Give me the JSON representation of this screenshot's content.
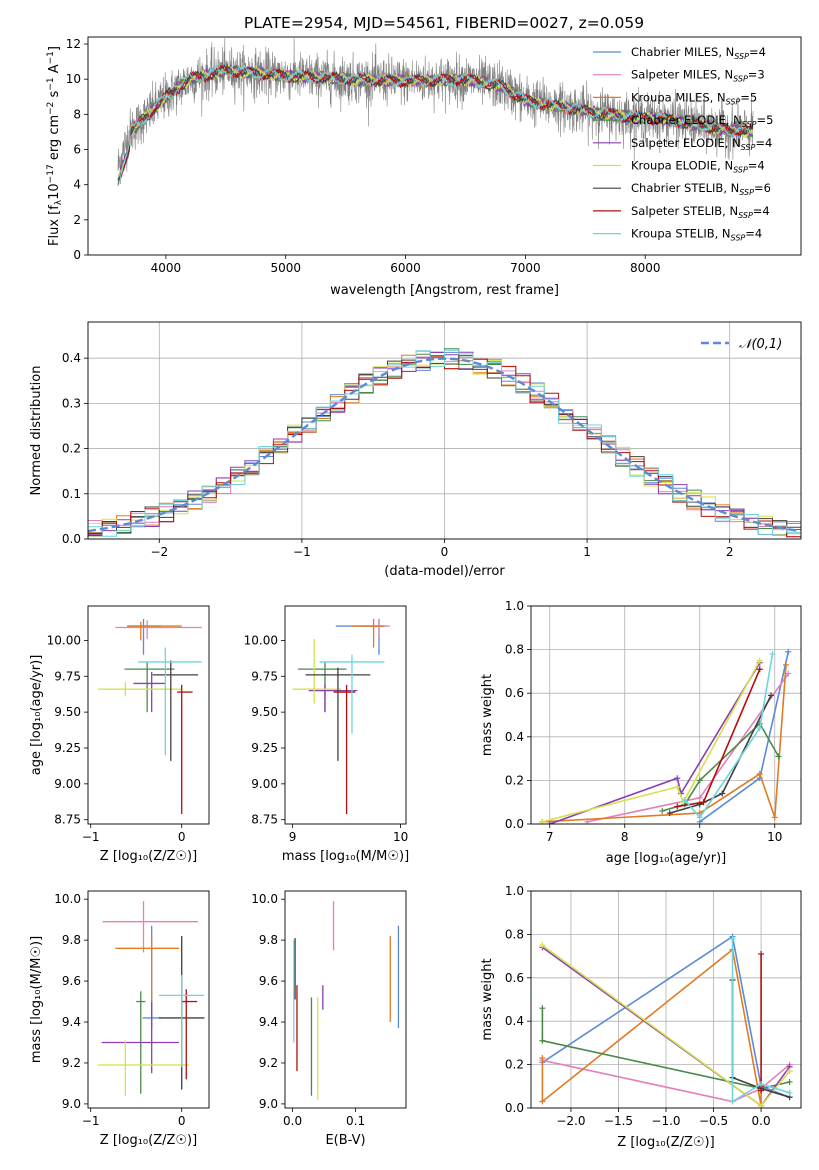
{
  "figure": {
    "title": "PLATE=2954, MJD=54561, FIBERID=0027, z=0.059"
  },
  "chart_data": [
    {
      "id": "spectrum",
      "type": "line",
      "xlabel": "wavelength [Angstrom, rest frame]",
      "ylabel_parts": [
        "Flux [f",
        "λ",
        "10",
        "−17",
        " erg cm",
        "−2",
        " s",
        "−1",
        " A",
        "−1",
        "]"
      ],
      "xlim": [
        3350,
        9300
      ],
      "ylim": [
        0,
        12.4
      ],
      "xticks": [
        4000,
        5000,
        6000,
        7000,
        8000
      ],
      "yticks": [
        0,
        2,
        4,
        6,
        8,
        10,
        12
      ],
      "grid": false,
      "legend_position": "top-right",
      "continuum_points": [
        [
          3600,
          5.0
        ],
        [
          3700,
          7.0
        ],
        [
          3850,
          8.0
        ],
        [
          4000,
          9.0
        ],
        [
          4200,
          10.0
        ],
        [
          4500,
          10.5
        ],
        [
          5000,
          10.2
        ],
        [
          5500,
          10.0
        ],
        [
          6000,
          9.9
        ],
        [
          6500,
          10.0
        ],
        [
          6800,
          9.6
        ],
        [
          7000,
          8.8
        ],
        [
          7500,
          8.2
        ],
        [
          7800,
          7.9
        ],
        [
          8200,
          7.7
        ],
        [
          8600,
          7.2
        ],
        [
          8900,
          7.0
        ]
      ],
      "noise_amplitude": 1.2
    },
    {
      "id": "residuals",
      "type": "step",
      "xlabel": "(data-model)/error",
      "ylabel": "Normed distribution",
      "xlim": [
        -2.5,
        2.5
      ],
      "ylim": [
        0,
        0.48
      ],
      "xticks": [
        -2,
        -1,
        0,
        1,
        2
      ],
      "xtick_labels": [
        "−2",
        "−1",
        "0",
        "1",
        "2"
      ],
      "yticks": [
        0,
        0.1,
        0.2,
        0.3,
        0.4
      ],
      "ytick_labels": [
        "0.0",
        "0.1",
        "0.2",
        "0.3",
        "0.4"
      ],
      "grid": true,
      "legend_position": "top-right",
      "gaussian_label": "𝒩(0,1)",
      "bin_width": 0.1
    },
    {
      "id": "age_vs_Z",
      "type": "errorbar",
      "xlabel": "Z [log₁₀(Z/Z☉)]",
      "ylabel": "age  [log₁₀(age/yr)]",
      "xlim": [
        -1.03,
        0.3
      ],
      "ylim": [
        8.72,
        10.24
      ],
      "xticks": [
        -1,
        0
      ],
      "xtick_labels": [
        "−1",
        "0"
      ],
      "yticks": [
        8.75,
        9.0,
        9.25,
        9.5,
        9.75,
        10.0
      ],
      "ytick_labels": [
        "8.75",
        "9.00",
        "9.25",
        "9.50",
        "9.75",
        "10.00"
      ],
      "points": [
        {
          "series": 0,
          "x": -0.42,
          "y": 10.1,
          "xerr": [
            0.18,
            0.2
          ],
          "yerr": [
            0.2,
            0.05
          ]
        },
        {
          "series": 1,
          "x": -0.38,
          "y": 10.09,
          "xerr": [
            0.35,
            0.6
          ],
          "yerr": [
            0.08,
            0.05
          ]
        },
        {
          "series": 2,
          "x": -0.45,
          "y": 10.1,
          "xerr": [
            0.15,
            0.45
          ],
          "yerr": [
            0.1,
            0.03
          ]
        },
        {
          "series": 3,
          "x": -0.38,
          "y": 9.8,
          "xerr": [
            0.25,
            0.3
          ],
          "yerr": [
            0.3,
            0.05
          ]
        },
        {
          "series": 4,
          "x": -0.33,
          "y": 9.7,
          "xerr": [
            0.2,
            0.15
          ],
          "yerr": [
            0.2,
            0.08
          ]
        },
        {
          "series": 5,
          "x": -0.62,
          "y": 9.66,
          "xerr": [
            0.3,
            0.62
          ],
          "yerr": [
            0.05,
            0.05
          ]
        },
        {
          "series": 6,
          "x": -0.12,
          "y": 9.76,
          "xerr": [
            0.2,
            0.3
          ],
          "yerr": [
            0.6,
            0.1
          ]
        },
        {
          "series": 7,
          "x": 0.0,
          "y": 9.64,
          "xerr": [
            0.05,
            0.12
          ],
          "yerr": [
            0.85,
            0.05
          ]
        },
        {
          "series": 8,
          "x": -0.18,
          "y": 9.85,
          "xerr": [
            0.3,
            0.4
          ],
          "yerr": [
            0.65,
            0.1
          ]
        }
      ]
    },
    {
      "id": "age_vs_mass",
      "type": "errorbar",
      "xlabel": "mass [log₁₀(M/M☉)]",
      "ylabel": "",
      "xlim": [
        8.93,
        10.05
      ],
      "ylim": [
        8.72,
        10.24
      ],
      "xticks": [
        9,
        10
      ],
      "xtick_labels": [
        "9",
        "10"
      ],
      "yticks": [
        8.75,
        9.0,
        9.25,
        9.5,
        9.75,
        10.0
      ],
      "ytick_labels": [
        "8.75",
        "9.00",
        "9.25",
        "9.50",
        "9.75",
        "10.00"
      ],
      "points": [
        {
          "series": 0,
          "x": 9.8,
          "y": 10.1,
          "xerr": [
            0.4,
            0.05
          ],
          "yerr": [
            0.2,
            0.05
          ]
        },
        {
          "series": 1,
          "x": 9.8,
          "y": 10.1,
          "xerr": [
            0.15,
            0.1
          ],
          "yerr": [
            0.08,
            0.05
          ]
        },
        {
          "series": 2,
          "x": 9.75,
          "y": 10.1,
          "xerr": [
            0.2,
            0.1
          ],
          "yerr": [
            0.15,
            0.05
          ]
        },
        {
          "series": 3,
          "x": 9.3,
          "y": 9.8,
          "xerr": [
            0.25,
            0.2
          ],
          "yerr": [
            0.3,
            0.05
          ]
        },
        {
          "series": 4,
          "x": 9.3,
          "y": 9.65,
          "xerr": [
            0.15,
            0.3
          ],
          "yerr": [
            0.15,
            0.05
          ]
        },
        {
          "series": 5,
          "x": 9.2,
          "y": 9.66,
          "xerr": [
            0.2,
            0.25
          ],
          "yerr": [
            0.1,
            0.35
          ]
        },
        {
          "series": 6,
          "x": 9.42,
          "y": 9.76,
          "xerr": [
            0.3,
            0.3
          ],
          "yerr": [
            0.6,
            0.05
          ]
        },
        {
          "series": 7,
          "x": 9.5,
          "y": 9.64,
          "xerr": [
            0.12,
            0.08
          ],
          "yerr": [
            0.85,
            0.05
          ]
        },
        {
          "series": 8,
          "x": 9.55,
          "y": 9.85,
          "xerr": [
            0.3,
            0.3
          ],
          "yerr": [
            0.5,
            0.05
          ]
        }
      ]
    },
    {
      "id": "weight_vs_age",
      "type": "line",
      "xlabel": "age  [log₁₀(age/yr)]",
      "ylabel": "mass weight",
      "xlim": [
        6.75,
        10.35
      ],
      "ylim": [
        0,
        1.0
      ],
      "xticks": [
        7,
        8,
        9,
        10
      ],
      "xtick_labels": [
        "7",
        "8",
        "9",
        "10"
      ],
      "yticks": [
        0,
        0.2,
        0.4,
        0.6,
        0.8,
        1.0
      ],
      "ytick_labels": [
        "0.0",
        "0.2",
        "0.4",
        "0.6",
        "0.8",
        "1.0"
      ],
      "grid": true,
      "series": [
        {
          "series": 0,
          "x": [
            9.0,
            9.8,
            10.18
          ],
          "y": [
            0.01,
            0.21,
            0.79
          ]
        },
        {
          "series": 1,
          "x": [
            7.5,
            9.0,
            10.18
          ],
          "y": [
            0.01,
            0.12,
            0.69
          ]
        },
        {
          "series": 2,
          "x": [
            6.9,
            9.0,
            9.8,
            10.0,
            10.15
          ],
          "y": [
            0.01,
            0.05,
            0.23,
            0.03,
            0.73
          ]
        },
        {
          "series": 3,
          "x": [
            8.5,
            8.8,
            9.0,
            9.8,
            10.05
          ],
          "y": [
            0.06,
            0.09,
            0.2,
            0.46,
            0.31
          ]
        },
        {
          "series": 4,
          "x": [
            7.0,
            8.7,
            8.75,
            9.8
          ],
          "y": [
            0.0,
            0.21,
            0.14,
            0.74
          ]
        },
        {
          "series": 5,
          "x": [
            6.9,
            8.7,
            8.78,
            9.8
          ],
          "y": [
            0.01,
            0.17,
            0.1,
            0.75
          ]
        },
        {
          "series": 6,
          "x": [
            8.6,
            9.0,
            9.3,
            9.95
          ],
          "y": [
            0.05,
            0.09,
            0.14,
            0.59
          ]
        },
        {
          "series": 7,
          "x": [
            8.7,
            9.05,
            9.8
          ],
          "y": [
            0.08,
            0.1,
            0.71
          ]
        },
        {
          "series": 8,
          "x": [
            8.8,
            9.0,
            9.8,
            9.97
          ],
          "y": [
            0.11,
            0.03,
            0.44,
            0.78
          ]
        }
      ]
    },
    {
      "id": "mass_vs_Z",
      "type": "errorbar",
      "xlabel": "Z [log₁₀(Z/Z☉)]",
      "ylabel": "mass [log₁₀(M/M☉)]",
      "xlim": [
        -1.03,
        0.3
      ],
      "ylim": [
        8.98,
        10.04
      ],
      "xticks": [
        -1,
        0
      ],
      "xtick_labels": [
        "−1",
        "0"
      ],
      "yticks": [
        9.0,
        9.2,
        9.4,
        9.6,
        9.8,
        10.0
      ],
      "ytick_labels": [
        "9.0",
        "9.2",
        "9.4",
        "9.6",
        "9.8",
        "10.0"
      ],
      "points": [
        {
          "series": 0,
          "x": -0.33,
          "y": 9.42,
          "xerr": [
            0.1,
            0.1
          ],
          "yerr": [
            0.05,
            0.45
          ]
        },
        {
          "series": 1,
          "x": -0.42,
          "y": 9.89,
          "xerr": [
            0.45,
            0.6
          ],
          "yerr": [
            0.15,
            0.1
          ]
        },
        {
          "series": 2,
          "x": -0.33,
          "y": 9.76,
          "xerr": [
            0.4,
            0.3
          ],
          "yerr": [
            0.3,
            0.06
          ]
        },
        {
          "series": 3,
          "x": -0.45,
          "y": 9.5,
          "xerr": [
            0.05,
            0.05
          ],
          "yerr": [
            0.45,
            0.05
          ]
        },
        {
          "series": 4,
          "x": -0.33,
          "y": 9.3,
          "xerr": [
            0.55,
            0.3
          ],
          "yerr": [
            0.15,
            0.2
          ]
        },
        {
          "series": 5,
          "x": -0.62,
          "y": 9.19,
          "xerr": [
            0.3,
            0.7
          ],
          "yerr": [
            0.15,
            0.12
          ]
        },
        {
          "series": 6,
          "x": 0.0,
          "y": 9.42,
          "xerr": [
            0.25,
            0.25
          ],
          "yerr": [
            0.35,
            0.4
          ]
        },
        {
          "series": 7,
          "x": 0.05,
          "y": 9.5,
          "xerr": [
            0.05,
            0.12
          ],
          "yerr": [
            0.38,
            0.06
          ]
        },
        {
          "series": 8,
          "x": 0.0,
          "y": 9.53,
          "xerr": [
            0.25,
            0.25
          ],
          "yerr": [
            0.35,
            0.1
          ]
        }
      ]
    },
    {
      "id": "mass_vs_ebv",
      "type": "errorbar",
      "xlabel": "E(B-V)",
      "ylabel": "",
      "xlim": [
        -0.012,
        0.18
      ],
      "ylim": [
        8.98,
        10.04
      ],
      "xticks": [
        0.0,
        0.1
      ],
      "xtick_labels": [
        "0.0",
        "0.1"
      ],
      "yticks": [
        9.0,
        9.2,
        9.4,
        9.6,
        9.8,
        10.0
      ],
      "ytick_labels": [
        "9.0",
        "9.2",
        "9.4",
        "9.6",
        "9.8",
        "10.0"
      ],
      "points": [
        {
          "series": 0,
          "x": 0.168,
          "y": 9.62,
          "xerr": [
            0,
            0
          ],
          "yerr": [
            0.25,
            0.25
          ]
        },
        {
          "series": 1,
          "x": 0.065,
          "y": 9.87,
          "xerr": [
            0,
            0
          ],
          "yerr": [
            0.12,
            0.12
          ]
        },
        {
          "series": 2,
          "x": 0.155,
          "y": 9.61,
          "xerr": [
            0,
            0
          ],
          "yerr": [
            0.21,
            0.21
          ]
        },
        {
          "series": 3,
          "x": 0.03,
          "y": 9.28,
          "xerr": [
            0,
            0
          ],
          "yerr": [
            0.24,
            0.24
          ]
        },
        {
          "series": 4,
          "x": 0.048,
          "y": 9.52,
          "xerr": [
            0,
            0
          ],
          "yerr": [
            0.06,
            0.06
          ]
        },
        {
          "series": 5,
          "x": 0.04,
          "y": 9.27,
          "xerr": [
            0,
            0
          ],
          "yerr": [
            0.25,
            0.25
          ]
        },
        {
          "series": 6,
          "x": 0.004,
          "y": 9.66,
          "xerr": [
            0,
            0
          ],
          "yerr": [
            0.15,
            0.15
          ]
        },
        {
          "series": 7,
          "x": 0.007,
          "y": 9.37,
          "xerr": [
            0,
            0
          ],
          "yerr": [
            0.21,
            0.21
          ]
        },
        {
          "series": 8,
          "x": 0.002,
          "y": 9.55,
          "xerr": [
            0,
            0
          ],
          "yerr": [
            0.25,
            0.25
          ]
        }
      ]
    },
    {
      "id": "weight_vs_Z",
      "type": "line",
      "xlabel": "Z [log₁₀(Z/Z☉)]",
      "ylabel": "mass weight",
      "xlim": [
        -2.42,
        0.42
      ],
      "ylim": [
        0,
        1.0
      ],
      "xticks": [
        -2.0,
        -1.5,
        -1.0,
        -0.5,
        0.0
      ],
      "xtick_labels": [
        "−2.0",
        "−1.5",
        "−1.0",
        "−0.5",
        "0.0"
      ],
      "yticks": [
        0,
        0.2,
        0.4,
        0.6,
        0.8,
        1.0
      ],
      "ytick_labels": [
        "0.0",
        "0.2",
        "0.4",
        "0.6",
        "0.8",
        "1.0"
      ],
      "grid": true,
      "series": [
        {
          "series": 0,
          "x": [
            -2.3,
            -0.3,
            0.0,
            0.3
          ],
          "y": [
            0.21,
            0.79,
            0.1,
            0.05
          ]
        },
        {
          "series": 1,
          "x": [
            -2.3,
            -0.3,
            0.0,
            0.3
          ],
          "y": [
            0.22,
            0.03,
            0.09,
            0.2
          ]
        },
        {
          "series": 2,
          "x": [
            -2.3,
            -2.3,
            -0.3,
            0.0,
            0.0
          ],
          "y": [
            0.23,
            0.03,
            0.73,
            0.01,
            0.09
          ]
        },
        {
          "series": 3,
          "x": [
            -2.3,
            -2.3,
            0.0,
            0.3
          ],
          "y": [
            0.46,
            0.31,
            0.09,
            0.12
          ]
        },
        {
          "series": 4,
          "x": [
            -2.3,
            0.0,
            0.3
          ],
          "y": [
            0.74,
            0.01,
            0.19
          ]
        },
        {
          "series": 5,
          "x": [
            -2.3,
            0.0,
            0.3
          ],
          "y": [
            0.75,
            0.01,
            0.17
          ]
        },
        {
          "series": 6,
          "x": [
            -0.3,
            -0.3,
            0.0,
            0.3
          ],
          "y": [
            0.59,
            0.14,
            0.09,
            0.05
          ]
        },
        {
          "series": 7,
          "x": [
            0.0,
            0.0,
            0.0
          ],
          "y": [
            0.71,
            0.08,
            0.1
          ]
        },
        {
          "series": 8,
          "x": [
            -0.3,
            -0.3,
            0.0,
            0.3
          ],
          "y": [
            0.78,
            0.03,
            0.11,
            0.07
          ]
        }
      ]
    }
  ],
  "legend": {
    "series": [
      {
        "prefix": "Chabrier MILES, N",
        "sub": "SSP",
        "suffix": "=4",
        "color": "#5b8bd6"
      },
      {
        "prefix": "Salpeter MILES, N",
        "sub": "SSP",
        "suffix": "=3",
        "color": "#e37fbd"
      },
      {
        "prefix": "Kroupa MILES, N",
        "sub": "SSP",
        "suffix": "=5",
        "color": "#e07b22"
      },
      {
        "prefix": "Chabrier ELODIE, N",
        "sub": "SSP",
        "suffix": "=5",
        "color": "#4a8a4a"
      },
      {
        "prefix": "Salpeter ELODIE, N",
        "sub": "SSP",
        "suffix": "=4",
        "color": "#8a3fb5"
      },
      {
        "prefix": "Kroupa ELODIE, N",
        "sub": "SSP",
        "suffix": "=4",
        "color": "#d7e04a"
      },
      {
        "prefix": "Chabrier STELIB, N",
        "sub": "SSP",
        "suffix": "=6",
        "color": "#404040"
      },
      {
        "prefix": "Salpeter STELIB, N",
        "sub": "SSP",
        "suffix": "=4",
        "color": "#b30d0d"
      },
      {
        "prefix": "Kroupa STELIB, N",
        "sub": "SSP",
        "suffix": "=4",
        "color": "#6fd4dd"
      }
    ],
    "data_color": "#808080",
    "gaussian_color": "#5b8bd6"
  }
}
